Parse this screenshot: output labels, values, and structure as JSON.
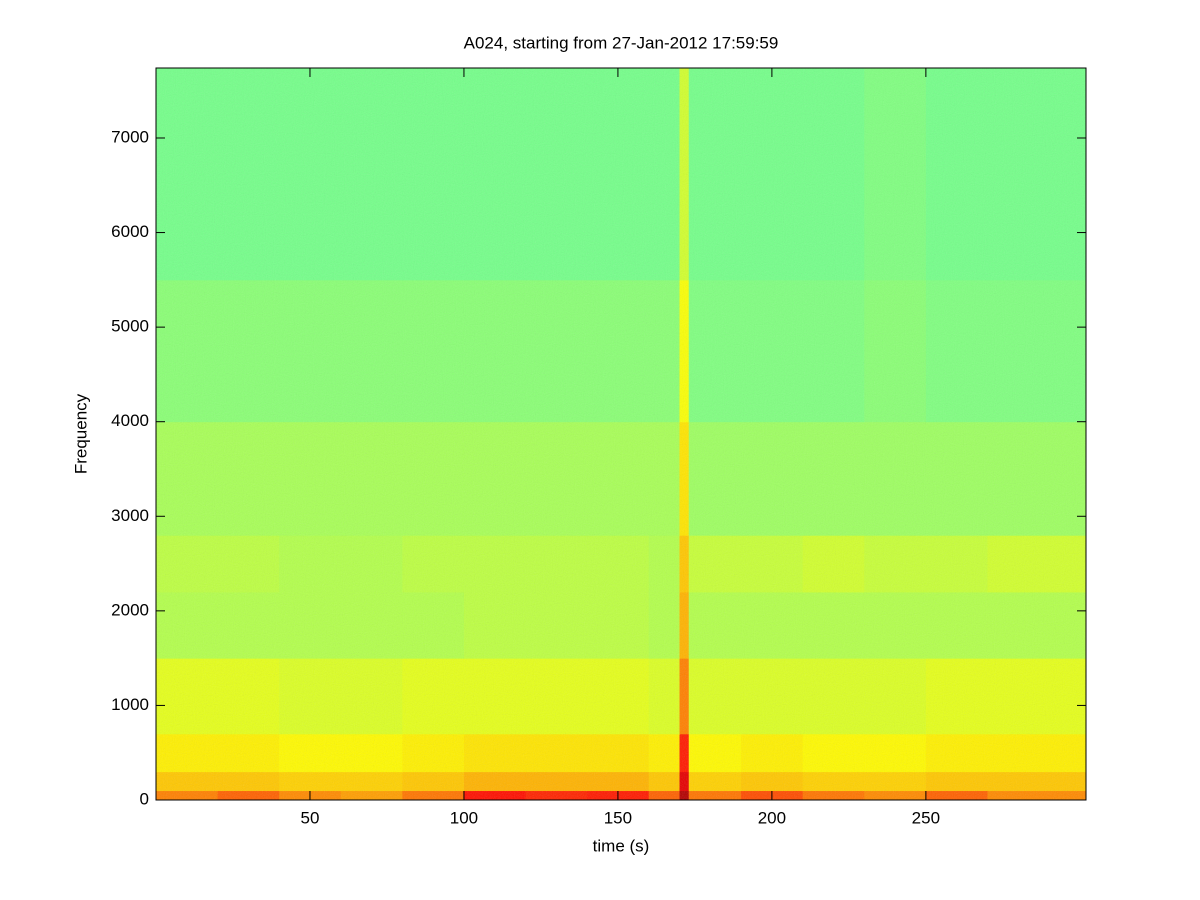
{
  "chart_data": {
    "type": "spectrogram",
    "title": "A024, starting from 27-Jan-2012 17:59:59",
    "xlabel": "time (s)",
    "ylabel": "Frequency",
    "colormap": "jet",
    "zlim": [
      0,
      1
    ],
    "xbins": [
      0,
      20,
      40,
      60,
      80,
      100,
      120,
      140,
      160,
      170,
      173,
      190,
      210,
      230,
      250,
      270,
      302
    ],
    "ybins": [
      0,
      100,
      300,
      700,
      1500,
      2200,
      2800,
      4000,
      5500,
      7740
    ],
    "z": [
      [
        0.75,
        0.78,
        0.74,
        0.72,
        0.76,
        0.86,
        0.84,
        0.85,
        0.78,
        0.95,
        0.76,
        0.8,
        0.76,
        0.74,
        0.78,
        0.74
      ],
      [
        0.68,
        0.68,
        0.67,
        0.67,
        0.68,
        0.7,
        0.7,
        0.7,
        0.68,
        0.9,
        0.67,
        0.68,
        0.67,
        0.67,
        0.68,
        0.68
      ],
      [
        0.64,
        0.64,
        0.63,
        0.63,
        0.64,
        0.65,
        0.65,
        0.65,
        0.64,
        0.85,
        0.63,
        0.64,
        0.63,
        0.63,
        0.64,
        0.64
      ],
      [
        0.6,
        0.6,
        0.59,
        0.59,
        0.6,
        0.6,
        0.6,
        0.6,
        0.59,
        0.75,
        0.59,
        0.59,
        0.59,
        0.59,
        0.6,
        0.6
      ],
      [
        0.55,
        0.55,
        0.55,
        0.55,
        0.55,
        0.56,
        0.56,
        0.56,
        0.55,
        0.7,
        0.55,
        0.55,
        0.55,
        0.55,
        0.55,
        0.55
      ],
      [
        0.56,
        0.56,
        0.55,
        0.55,
        0.56,
        0.56,
        0.56,
        0.56,
        0.55,
        0.68,
        0.57,
        0.57,
        0.58,
        0.57,
        0.57,
        0.58
      ],
      [
        0.54,
        0.54,
        0.54,
        0.54,
        0.54,
        0.54,
        0.54,
        0.54,
        0.54,
        0.65,
        0.53,
        0.53,
        0.53,
        0.53,
        0.53,
        0.53
      ],
      [
        0.51,
        0.51,
        0.51,
        0.51,
        0.51,
        0.51,
        0.51,
        0.51,
        0.51,
        0.62,
        0.5,
        0.5,
        0.5,
        0.51,
        0.5,
        0.5
      ],
      [
        0.49,
        0.49,
        0.49,
        0.49,
        0.49,
        0.49,
        0.49,
        0.49,
        0.49,
        0.58,
        0.49,
        0.49,
        0.49,
        0.5,
        0.49,
        0.49
      ]
    ],
    "xlim": [
      0,
      302
    ],
    "ylim": [
      0,
      7740
    ],
    "xticks": [
      50,
      100,
      150,
      200,
      250
    ],
    "yticks": [
      0,
      1000,
      2000,
      3000,
      4000,
      5000,
      6000,
      7000
    ]
  }
}
